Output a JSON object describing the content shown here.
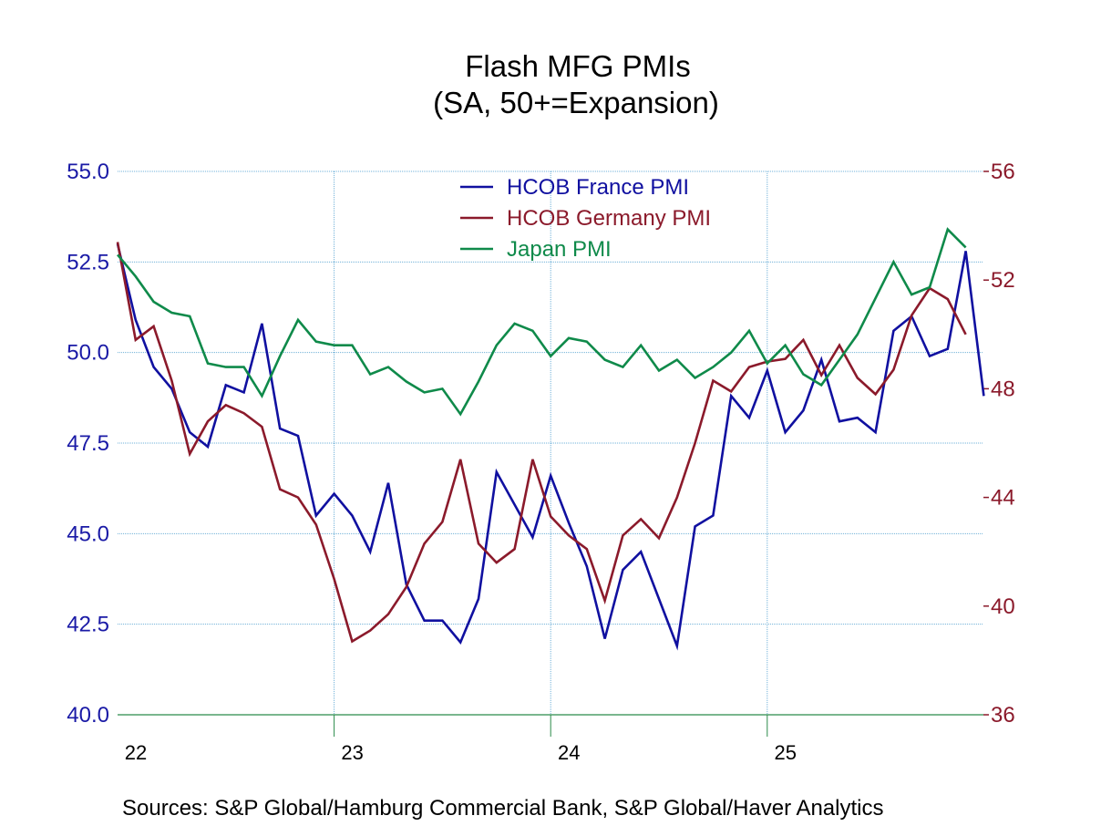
{
  "chart_data": {
    "type": "line",
    "title": "Flash MFG PMIs",
    "subtitle": "(SA, 50+=Expansion)",
    "source": "Sources:  S&P Global/Hamburg Commercial Bank, S&P Global/Haver Analytics",
    "x_tick_labels": [
      "22",
      "23",
      "24",
      "25"
    ],
    "x_range": [
      "2022-01",
      "2025-12"
    ],
    "y_left": {
      "range": [
        40.0,
        55.0
      ],
      "ticks": [
        "55.0",
        "52.5",
        "50.0",
        "47.5",
        "45.0",
        "42.5",
        "40.0"
      ],
      "color": "#1a1aa6"
    },
    "y_right": {
      "range": [
        36,
        56
      ],
      "ticks": [
        "56",
        "52",
        "48",
        "44",
        "40",
        "36"
      ],
      "color": "#8b1a2b"
    },
    "grid": true,
    "legend_position": "top-center",
    "series": [
      {
        "name": "HCOB France PMI",
        "axis": "left",
        "color": "#1010a0",
        "start": "2022-01",
        "values": [
          53.0,
          50.9,
          49.6,
          49.0,
          47.8,
          47.4,
          49.1,
          48.9,
          50.8,
          47.9,
          47.7,
          45.5,
          46.1,
          45.5,
          44.5,
          46.4,
          43.6,
          42.6,
          42.6,
          42.0,
          43.2,
          46.7,
          45.8,
          44.9,
          46.6,
          45.3,
          44.1,
          42.1,
          44.0,
          44.5,
          43.2,
          41.9,
          45.2,
          45.5,
          48.8,
          48.2,
          49.5,
          47.8,
          48.4,
          49.8,
          48.1,
          48.2,
          47.8,
          50.6,
          51.0,
          49.9,
          50.1,
          52.8,
          48.8
        ]
      },
      {
        "name": "HCOB Germany PMI",
        "axis": "right",
        "color": "#8b1a2b",
        "start": "2022-01",
        "values": [
          53.4,
          49.8,
          50.3,
          48.3,
          45.6,
          46.8,
          47.4,
          47.1,
          46.6,
          44.3,
          44.0,
          43.0,
          41.0,
          38.7,
          39.1,
          39.7,
          40.7,
          42.3,
          43.1,
          45.4,
          42.3,
          41.6,
          42.1,
          45.4,
          43.3,
          42.6,
          42.1,
          40.2,
          42.6,
          43.2,
          42.5,
          44.0,
          46.0,
          48.3,
          47.9,
          48.8,
          49.0,
          49.1,
          49.8,
          48.5,
          49.6,
          48.4,
          47.8,
          48.7,
          50.7,
          51.7,
          51.3,
          50.0
        ]
      },
      {
        "name": "Japan PMI",
        "axis": "left",
        "color": "#0f8a4a",
        "start": "2022-01",
        "values": [
          52.7,
          52.1,
          51.4,
          51.1,
          51.0,
          49.7,
          49.6,
          49.6,
          48.8,
          49.9,
          50.9,
          50.3,
          50.2,
          50.2,
          49.4,
          49.6,
          49.2,
          48.9,
          49.0,
          48.3,
          49.2,
          50.2,
          50.8,
          50.6,
          49.9,
          50.4,
          50.3,
          49.8,
          49.6,
          50.2,
          49.5,
          49.8,
          49.3,
          49.6,
          50.0,
          50.6,
          49.7,
          50.2,
          49.4,
          49.1,
          49.8,
          50.5,
          51.5,
          52.5,
          51.6,
          51.8,
          53.4,
          52.9
        ]
      }
    ]
  }
}
